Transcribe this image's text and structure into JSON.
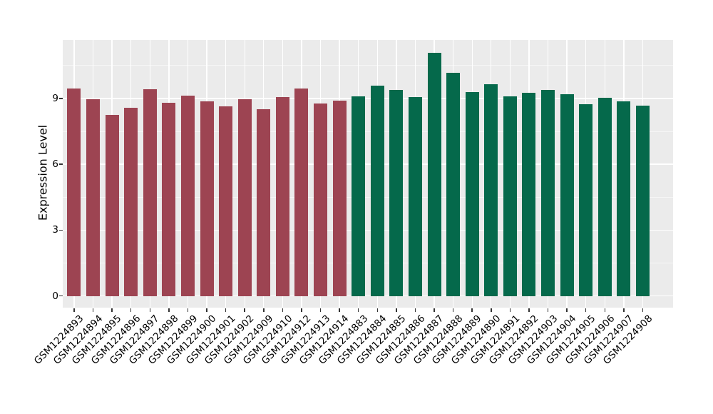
{
  "figure": {
    "background": "#ffffff"
  },
  "chart_data": {
    "type": "bar",
    "title": "",
    "xlabel": "",
    "ylabel": "Expression Level",
    "ylim": [
      0,
      11.7
    ],
    "yticks": [
      0,
      3,
      6,
      9
    ],
    "grid": "on",
    "legend": "none",
    "panel_background": "#ebebeb",
    "gridline_color": "#ffffff",
    "axis_text_color": "#000000",
    "tick_mark_color": "#333333",
    "group_colors": {
      "red_group": "#9d4452",
      "green_group": "#05694b"
    },
    "categories": [
      "GSM1224893",
      "GSM1224894",
      "GSM1224895",
      "GSM1224896",
      "GSM1224897",
      "GSM1224898",
      "GSM1224899",
      "GSM1224900",
      "GSM1224901",
      "GSM1224902",
      "GSM1224909",
      "GSM1224910",
      "GSM1224912",
      "GSM1224913",
      "GSM1224914",
      "GSM1224883",
      "GSM1224884",
      "GSM1224885",
      "GSM1224886",
      "GSM1224887",
      "GSM1224888",
      "GSM1224889",
      "GSM1224890",
      "GSM1224891",
      "GSM1224892",
      "GSM1224903",
      "GSM1224904",
      "GSM1224905",
      "GSM1224906",
      "GSM1224907",
      "GSM1224908"
    ],
    "values": [
      9.46,
      8.98,
      8.24,
      8.58,
      9.43,
      8.79,
      9.12,
      8.87,
      8.65,
      8.98,
      8.52,
      9.05,
      9.45,
      8.76,
      8.9,
      9.1,
      9.6,
      9.38,
      9.05,
      11.07,
      10.16,
      9.3,
      9.65,
      9.09,
      9.27,
      9.38,
      9.2,
      8.73,
      9.03,
      8.87,
      8.66
    ],
    "groups": [
      "red_group",
      "red_group",
      "red_group",
      "red_group",
      "red_group",
      "red_group",
      "red_group",
      "red_group",
      "red_group",
      "red_group",
      "red_group",
      "red_group",
      "red_group",
      "red_group",
      "red_group",
      "green_group",
      "green_group",
      "green_group",
      "green_group",
      "green_group",
      "green_group",
      "green_group",
      "green_group",
      "green_group",
      "green_group",
      "green_group",
      "green_group",
      "green_group",
      "green_group",
      "green_group",
      "green_group"
    ]
  }
}
